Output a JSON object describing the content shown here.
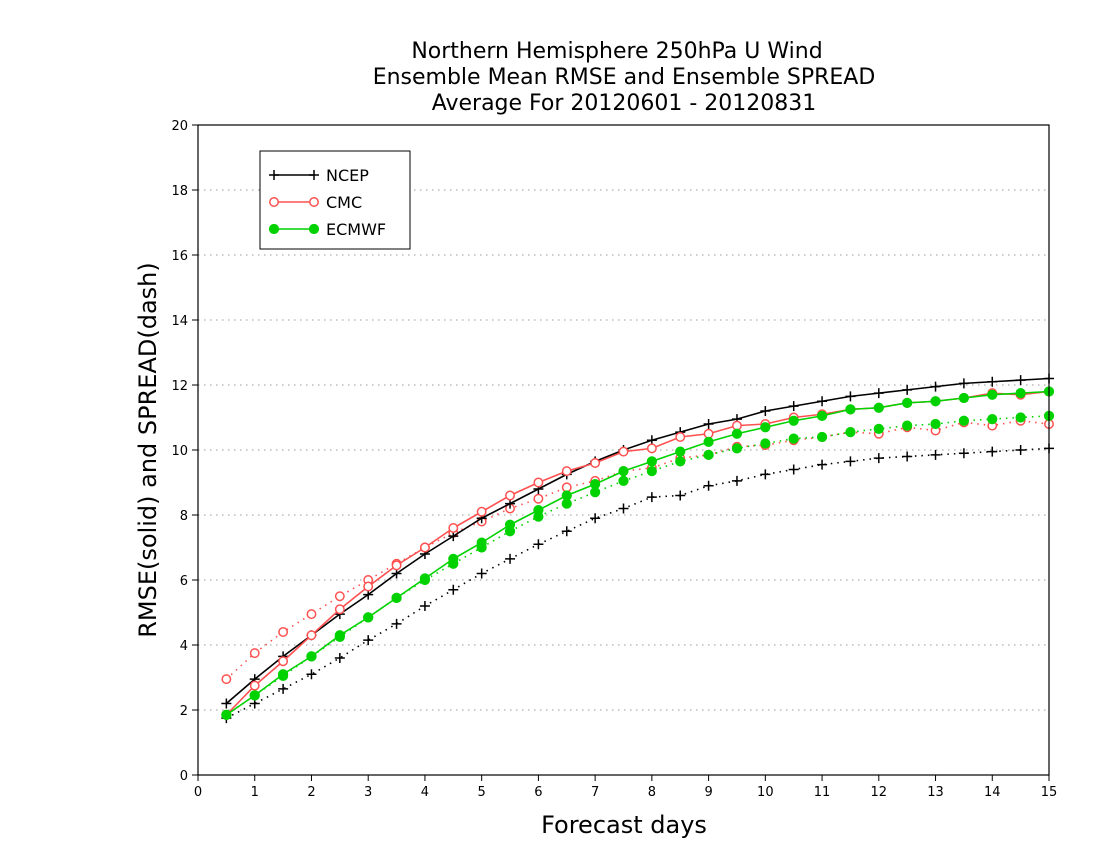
{
  "chart_data": {
    "type": "line",
    "title_lines": [
      "Northern Hemisphere 250hPa U Wind",
      "Ensemble Mean RMSE and Ensemble SPREAD",
      "Average For 20120601 - 20120831"
    ],
    "xlabel": "Forecast days",
    "ylabel": "RMSE(solid) and SPREAD(dash)",
    "xlim": [
      0,
      15
    ],
    "ylim": [
      0,
      20
    ],
    "xticks": [
      "0",
      "1",
      "2",
      "3",
      "4",
      "5",
      "6",
      "7",
      "8",
      "9",
      "10",
      "11",
      "12",
      "13",
      "14",
      "15"
    ],
    "yticks": [
      "0",
      "2",
      "4",
      "6",
      "8",
      "10",
      "12",
      "14",
      "16",
      "18",
      "20"
    ],
    "grid": "horizontal dotted",
    "legend_position": "top-left",
    "x": [
      0.5,
      1,
      1.5,
      2,
      2.5,
      3,
      3.5,
      4,
      4.5,
      5,
      5.5,
      6,
      6.5,
      7,
      7.5,
      8,
      8.5,
      9,
      9.5,
      10,
      10.5,
      11,
      11.5,
      12,
      12.5,
      13,
      13.5,
      14,
      14.5,
      15
    ],
    "series": [
      {
        "name": "NCEP",
        "color": "#000000",
        "marker": "plus",
        "rmse": [
          2.2,
          2.95,
          3.65,
          4.3,
          4.95,
          5.55,
          6.2,
          6.8,
          7.35,
          7.9,
          8.35,
          8.8,
          9.25,
          9.65,
          10.0,
          10.3,
          10.55,
          10.8,
          10.95,
          11.2,
          11.35,
          11.5,
          11.65,
          11.75,
          11.85,
          11.95,
          12.05,
          12.1,
          12.15,
          12.2
        ],
        "spread": [
          1.75,
          2.2,
          2.65,
          3.1,
          3.6,
          4.15,
          4.65,
          5.2,
          5.7,
          6.2,
          6.65,
          7.1,
          7.5,
          7.9,
          8.2,
          8.55,
          8.6,
          8.9,
          9.05,
          9.25,
          9.4,
          9.55,
          9.65,
          9.75,
          9.8,
          9.85,
          9.9,
          9.95,
          10.0,
          10.05
        ]
      },
      {
        "name": "CMC",
        "color": "#ff5050",
        "marker": "open-circle",
        "rmse": [
          1.85,
          2.75,
          3.5,
          4.3,
          5.1,
          5.8,
          6.45,
          7.0,
          7.6,
          8.1,
          8.6,
          9.0,
          9.35,
          9.6,
          9.95,
          10.05,
          10.4,
          10.5,
          10.75,
          10.8,
          11.0,
          11.1,
          11.25,
          11.3,
          11.45,
          11.5,
          11.6,
          11.75,
          11.7,
          11.8
        ],
        "spread": [
          2.95,
          3.75,
          4.4,
          4.95,
          5.5,
          6.0,
          6.5,
          7.0,
          7.45,
          7.8,
          8.2,
          8.5,
          8.85,
          9.05,
          9.35,
          9.45,
          9.75,
          9.85,
          10.1,
          10.15,
          10.3,
          10.4,
          10.55,
          10.5,
          10.7,
          10.6,
          10.85,
          10.75,
          10.9,
          10.8
        ]
      },
      {
        "name": "ECMWF",
        "color": "#00d200",
        "marker": "filled-circle",
        "rmse": [
          1.85,
          2.45,
          3.1,
          3.65,
          4.3,
          4.85,
          5.45,
          6.05,
          6.65,
          7.15,
          7.7,
          8.15,
          8.6,
          8.95,
          9.35,
          9.65,
          9.95,
          10.25,
          10.5,
          10.7,
          10.9,
          11.05,
          11.25,
          11.3,
          11.45,
          11.5,
          11.6,
          11.7,
          11.75,
          11.8
        ],
        "spread": [
          1.85,
          2.45,
          3.05,
          3.65,
          4.25,
          4.85,
          5.45,
          6.0,
          6.5,
          7.0,
          7.5,
          7.95,
          8.35,
          8.7,
          9.05,
          9.35,
          9.65,
          9.85,
          10.05,
          10.2,
          10.35,
          10.4,
          10.55,
          10.65,
          10.75,
          10.8,
          10.9,
          10.95,
          11.0,
          11.05
        ]
      }
    ]
  }
}
